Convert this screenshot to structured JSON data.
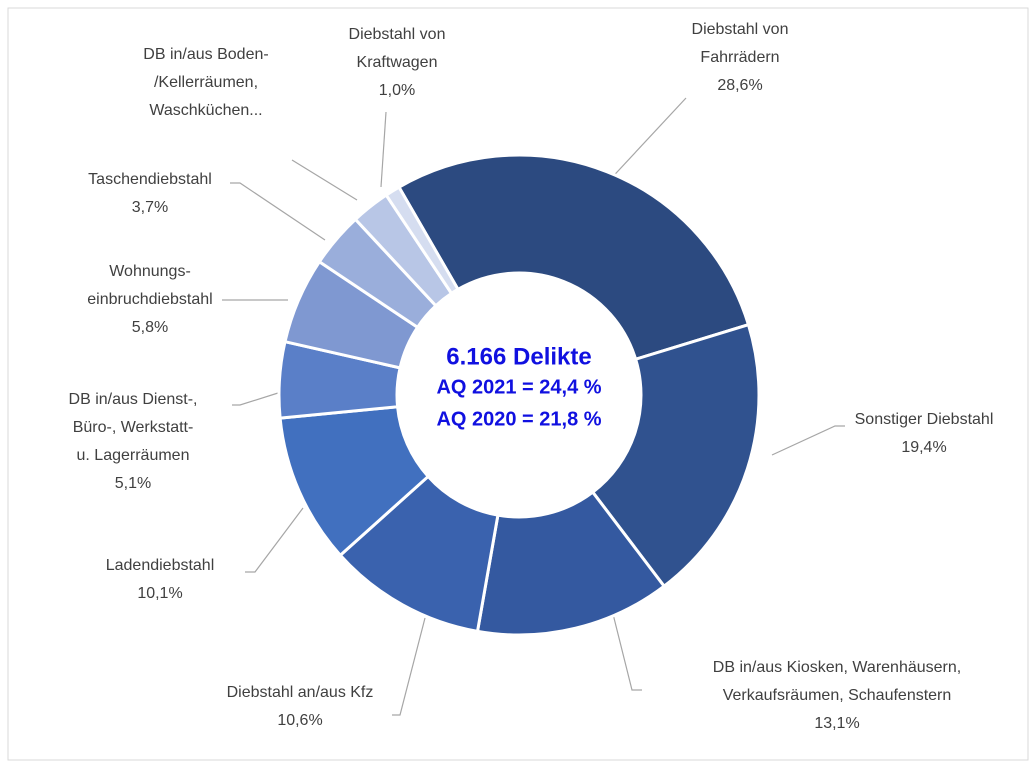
{
  "chart_data": {
    "type": "donut",
    "categories": [
      [
        "Diebstahl von",
        "Fahrrädern"
      ],
      [
        "Sonstiger Diebstahl"
      ],
      [
        "DB in/aus Kiosken, Warenhäusern,",
        "Verkaufsräumen, Schaufenstern"
      ],
      [
        "Diebstahl an/aus Kfz"
      ],
      [
        "Ladendiebstahl"
      ],
      [
        "DB in/aus Dienst-,",
        "Büro-, Werkstatt-",
        "u. Lagerräumen"
      ],
      [
        "Wohnungs-",
        "einbruchdiebstahl"
      ],
      [
        "Taschendiebstahl"
      ],
      [
        "DB in/aus Boden-",
        "/Kellerräumen,",
        "Waschküchen..."
      ],
      [
        "Diebstahl von",
        "Kraftwagen"
      ]
    ],
    "values": [
      28.6,
      19.4,
      13.1,
      10.6,
      10.1,
      5.1,
      5.8,
      3.7,
      2.6,
      1.0
    ],
    "value_labels": [
      "28,6%",
      "19,4%",
      "13,1%",
      "10,6%",
      "10,1%",
      "5,1%",
      "5,8%",
      "3,7%",
      null,
      "1,0%"
    ],
    "colors": [
      "#2c4a80",
      "#30528f",
      "#3459a0",
      "#3a62ae",
      "#4170bf",
      "#5a7fc8",
      "#7f98d1",
      "#9aaedb",
      "#b8c6e6",
      "#d5ddf0"
    ],
    "start_angle": -30,
    "annotations": [
      "6.166 Delikte",
      "AQ 2021 = 24,4 %",
      "AQ 2020 = 21,8 %"
    ]
  }
}
